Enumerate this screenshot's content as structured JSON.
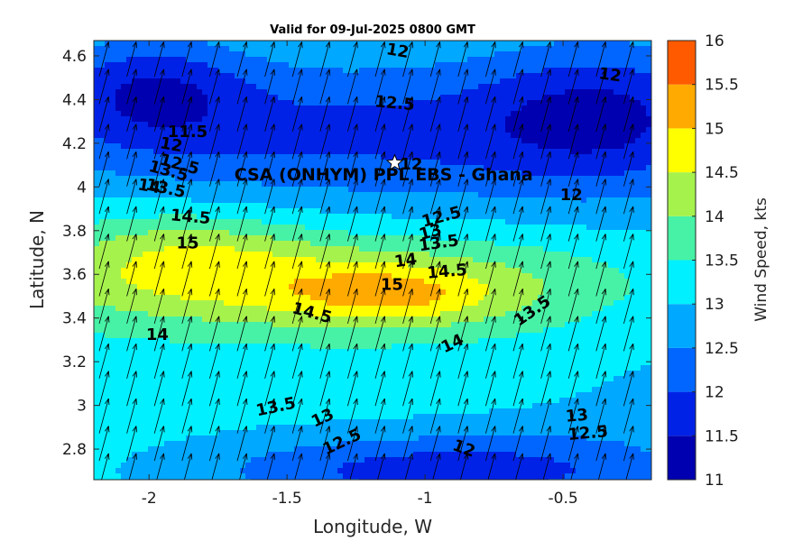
{
  "colors": {
    "levels": [
      {
        "min": 11,
        "max": 11.5,
        "color": "#0000b0"
      },
      {
        "min": 11.5,
        "max": 12,
        "color": "#0022e6"
      },
      {
        "min": 12,
        "max": 12.5,
        "color": "#0066ff"
      },
      {
        "min": 12.5,
        "max": 13,
        "color": "#00a8ff"
      },
      {
        "min": 13,
        "max": 13.5,
        "color": "#00f0ff"
      },
      {
        "min": 13.5,
        "max": 14,
        "color": "#47f2a6"
      },
      {
        "min": 14,
        "max": 14.5,
        "color": "#a6f24d"
      },
      {
        "min": 14.5,
        "max": 15,
        "color": "#ffff00"
      },
      {
        "min": 15,
        "max": 15.5,
        "color": "#ffaa00"
      },
      {
        "min": 15.5,
        "max": 16,
        "color": "#ff5a00"
      }
    ]
  },
  "chart_data": {
    "type": "heatmap",
    "title": "Valid for 09-Jul-2025 0800 GMT",
    "xlabel": "Longitude, W",
    "ylabel": "Latitude, N",
    "xlim": [
      -2.2,
      -0.18
    ],
    "ylim": [
      2.66,
      4.67
    ],
    "xticks": [
      -2,
      -1.5,
      -1,
      -0.5
    ],
    "xtick_labels": [
      "-2",
      "-1.5",
      "-1",
      "-0.5"
    ],
    "yticks": [
      2.8,
      3,
      3.2,
      3.4,
      3.6,
      3.8,
      4,
      4.2,
      4.4,
      4.6
    ],
    "ytick_labels": [
      "2.8",
      "3",
      "3.2",
      "3.4",
      "3.6",
      "3.8",
      "4",
      "4.2",
      "4.4",
      "4.6"
    ],
    "colorbar": {
      "label": "Wind Speed, kts",
      "range": [
        11,
        16
      ],
      "ticks": [
        11,
        11.5,
        12,
        12.5,
        13,
        13.5,
        14,
        14.5,
        15,
        15.5,
        16
      ],
      "tick_labels": [
        "11",
        "11.5",
        "12",
        "12.5",
        "13",
        "13.5",
        "14",
        "14.5",
        "15",
        "15.5",
        "16"
      ]
    },
    "contour_labels": [
      {
        "text": "12",
        "lon": -1.1,
        "lat": 4.62,
        "angle": 10
      },
      {
        "text": "12",
        "lon": -0.33,
        "lat": 4.51,
        "angle": 8
      },
      {
        "text": "12.5",
        "lon": -1.11,
        "lat": 4.38,
        "angle": 5
      },
      {
        "text": "11.5",
        "lon": -1.86,
        "lat": 4.25,
        "angle": 0
      },
      {
        "text": "12",
        "lon": -1.92,
        "lat": 4.19,
        "angle": 10
      },
      {
        "text": "12.5",
        "lon": -1.89,
        "lat": 4.1,
        "angle": 15
      },
      {
        "text": "13.5",
        "lon": -1.93,
        "lat": 4.07,
        "angle": 15
      },
      {
        "text": "12",
        "lon": -1.05,
        "lat": 4.1,
        "angle": 0
      },
      {
        "text": "14",
        "lon": -2.0,
        "lat": 4.0,
        "angle": 10
      },
      {
        "text": "13.5",
        "lon": -1.94,
        "lat": 3.99,
        "angle": 12
      },
      {
        "text": "12",
        "lon": -0.47,
        "lat": 3.96,
        "angle": 0
      },
      {
        "text": "14.5",
        "lon": -1.85,
        "lat": 3.86,
        "angle": 5
      },
      {
        "text": "12.5",
        "lon": -0.94,
        "lat": 3.86,
        "angle": -15
      },
      {
        "text": "13",
        "lon": -0.98,
        "lat": 3.79,
        "angle": -15
      },
      {
        "text": "13.5",
        "lon": -0.95,
        "lat": 3.74,
        "angle": -8
      },
      {
        "text": "15",
        "lon": -1.86,
        "lat": 3.74,
        "angle": 0
      },
      {
        "text": "14",
        "lon": -1.07,
        "lat": 3.66,
        "angle": -8
      },
      {
        "text": "14.5",
        "lon": -0.92,
        "lat": 3.61,
        "angle": -5
      },
      {
        "text": "15",
        "lon": -1.12,
        "lat": 3.55,
        "angle": 0
      },
      {
        "text": "14.5",
        "lon": -1.41,
        "lat": 3.42,
        "angle": 15
      },
      {
        "text": "13.5",
        "lon": -0.61,
        "lat": 3.43,
        "angle": -35
      },
      {
        "text": "14",
        "lon": -1.97,
        "lat": 3.32,
        "angle": 0
      },
      {
        "text": "14",
        "lon": -0.9,
        "lat": 3.28,
        "angle": -25
      },
      {
        "text": "13.5",
        "lon": -1.54,
        "lat": 2.99,
        "angle": -12
      },
      {
        "text": "13",
        "lon": -0.45,
        "lat": 2.95,
        "angle": -5
      },
      {
        "text": "13",
        "lon": -1.37,
        "lat": 2.94,
        "angle": -25
      },
      {
        "text": "12.5",
        "lon": -0.41,
        "lat": 2.87,
        "angle": -5
      },
      {
        "text": "12.5",
        "lon": -1.3,
        "lat": 2.83,
        "angle": -25
      },
      {
        "text": "12",
        "lon": -0.86,
        "lat": 2.8,
        "angle": 20
      }
    ],
    "site_marker": {
      "label": "CSA (ONHYM) PPL EBS  - Ghana",
      "lon": -1.11,
      "lat": 4.11
    },
    "wind_vector_direction": "toward north-northeast"
  }
}
